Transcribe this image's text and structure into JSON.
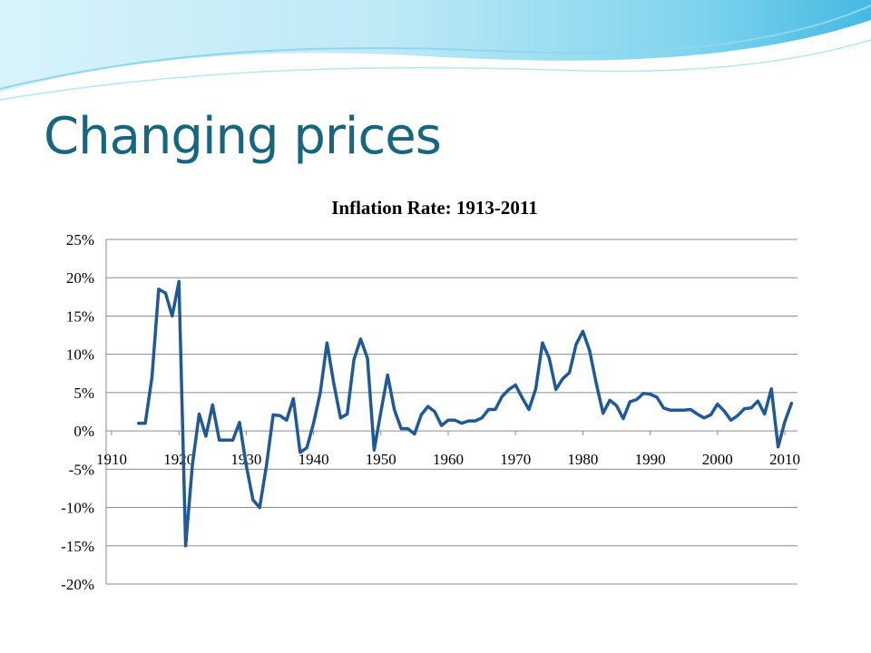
{
  "slide": {
    "title": "Changing prices"
  },
  "colors": {
    "title": "#17667f",
    "series_line": "#1f5a96",
    "banner_light": "#c9eef8",
    "banner_mid": "#7fd4ee",
    "banner_dark": "#3fb6e0"
  },
  "chart_data": {
    "type": "line",
    "title": "Inflation Rate: 1913-2011",
    "xlabel": "",
    "ylabel": "",
    "xlim": [
      1910,
      2015
    ],
    "ylim": [
      -20,
      25
    ],
    "grid": true,
    "y_ticks": [
      25,
      20,
      15,
      10,
      5,
      0,
      -5,
      -10,
      -15,
      -20
    ],
    "y_tick_labels": [
      "25%",
      "20%",
      "15%",
      "10%",
      "5%",
      "0%",
      "-5%",
      "-10%",
      "-15%",
      "-20%"
    ],
    "x_ticks": [
      1910,
      1920,
      1930,
      1940,
      1950,
      1960,
      1970,
      1980,
      1990,
      2000,
      2010
    ],
    "x_tick_labels": [
      "1910",
      "1920",
      "1930",
      "1940",
      "1950",
      "1960",
      "1970",
      "1980",
      "1990",
      "2000",
      "2010"
    ],
    "series": [
      {
        "x": [
          1914,
          1915,
          1916,
          1917,
          1918,
          1919,
          1920,
          1921,
          1922,
          1923,
          1924,
          1925,
          1926,
          1927,
          1928,
          1929,
          1930,
          1931,
          1932,
          1933,
          1934,
          1935,
          1936,
          1937,
          1938,
          1939,
          1940,
          1941,
          1942,
          1943,
          1944,
          1945,
          1946,
          1947,
          1948,
          1949,
          1950,
          1951,
          1952,
          1953,
          1954,
          1955,
          1956,
          1957,
          1958,
          1959,
          1960,
          1961,
          1962,
          1963,
          1964,
          1965,
          1966,
          1967,
          1968,
          1969,
          1970,
          1971,
          1972,
          1973,
          1974,
          1975,
          1976,
          1977,
          1978,
          1979,
          1980,
          1981,
          1982,
          1983,
          1984,
          1985,
          1986,
          1987,
          1988,
          1989,
          1990,
          1991,
          1992,
          1993,
          1994,
          1995,
          1996,
          1997,
          1998,
          1999,
          2000,
          2001,
          2002,
          2003,
          2004,
          2005,
          2006,
          2007,
          2008,
          2009,
          2010,
          2011
        ],
        "values": [
          1.0,
          1.0,
          7.0,
          18.5,
          18.0,
          15.0,
          19.5,
          -15.0,
          -4.5,
          2.2,
          -0.7,
          3.4,
          -1.2,
          -1.2,
          -1.2,
          1.1,
          -4.5,
          -9.0,
          -10.0,
          -4.5,
          2.1,
          2.0,
          1.4,
          4.2,
          -2.8,
          -2.2,
          1.0,
          5.0,
          11.5,
          6.2,
          1.7,
          2.2,
          9.3,
          12.0,
          9.5,
          -2.5,
          2.5,
          7.3,
          2.8,
          0.3,
          0.3,
          -0.4,
          2.1,
          3.2,
          2.5,
          0.7,
          1.4,
          1.4,
          1.0,
          1.3,
          1.3,
          1.7,
          2.8,
          2.8,
          4.5,
          5.4,
          6.0,
          4.3,
          2.8,
          5.5,
          11.5,
          9.5,
          5.4,
          6.8,
          7.6,
          11.3,
          13.0,
          10.5,
          6.2,
          2.3,
          4.0,
          3.3,
          1.6,
          3.8,
          4.1,
          4.9,
          4.8,
          4.4,
          3.0,
          2.7,
          2.7,
          2.7,
          2.8,
          2.2,
          1.7,
          2.1,
          3.5,
          2.6,
          1.4,
          2.0,
          2.9,
          3.0,
          3.9,
          2.2,
          5.5,
          -2.1,
          1.2,
          3.6
        ]
      }
    ]
  }
}
